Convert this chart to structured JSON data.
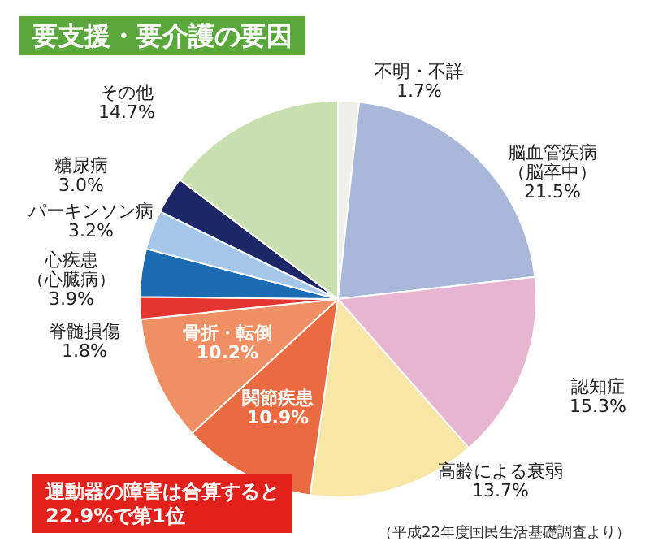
{
  "chart_data": {
    "type": "pie",
    "title": "要支援・要介護の要因",
    "categories": [
      "不明・不詳",
      "脳血管疾病（脳卒中）",
      "認知症",
      "高齢による衰弱",
      "関節疾患",
      "骨折・転倒",
      "脊髄損傷",
      "心疾患（心臓病）",
      "パーキンソン病",
      "糖尿病",
      "その他"
    ],
    "values": [
      1.7,
      21.5,
      15.3,
      13.7,
      10.9,
      10.2,
      1.8,
      3.9,
      3.2,
      3.0,
      14.7
    ],
    "value_labels": [
      "1.7%",
      "21.5%",
      "15.3%",
      "13.7%",
      "10.9%",
      "10.2%",
      "1.8%",
      "3.9%",
      "3.2%",
      "3.0%",
      "14.7%"
    ],
    "colors": [
      "#eeeeea",
      "#a9b8d9",
      "#e8b5d0",
      "#f7e6a6",
      "#ea6a42",
      "#f08f63",
      "#e5352f",
      "#1c6cb4",
      "#a4c6e8",
      "#1b2766",
      "#c8e0b0"
    ],
    "annotations": [
      "運動器の障害は合算すると\n22.9%で第1位",
      "（平成22年度国民生活基礎調査より）"
    ],
    "legend": false
  }
}
